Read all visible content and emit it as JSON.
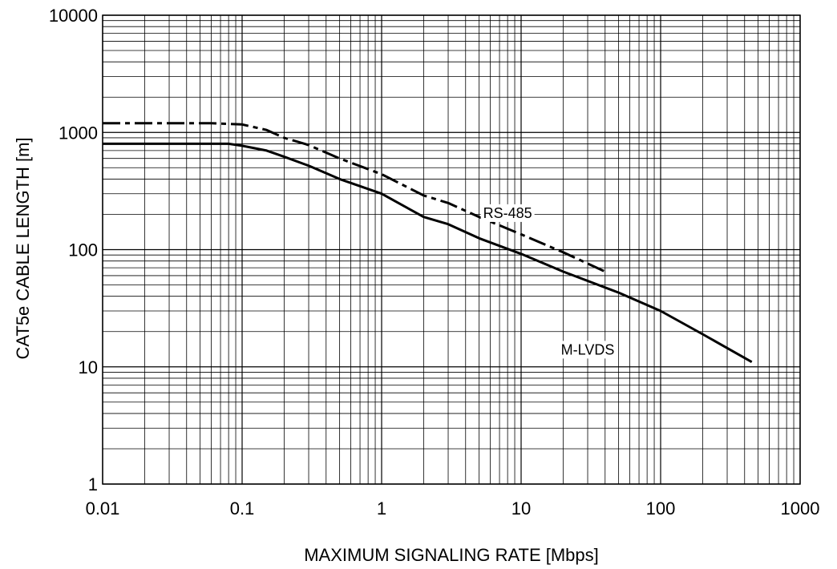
{
  "chart_data": {
    "type": "line",
    "title": "",
    "xlabel": "MAXIMUM SIGNALING RATE [Mbps]",
    "ylabel": "CAT5e CABLE LENGTH [m]",
    "xscale": "log",
    "yscale": "log",
    "xlim": [
      0.01,
      1000
    ],
    "ylim": [
      1,
      10000
    ],
    "grid": true,
    "legend": "none",
    "xticks": [
      0.01,
      0.1,
      1,
      10,
      100,
      1000
    ],
    "xtick_labels": [
      "0.01",
      "0.1",
      "1",
      "10",
      "100",
      "1000"
    ],
    "yticks": [
      1,
      10,
      100,
      1000,
      10000
    ],
    "ytick_labels": [
      "1",
      "10",
      "100",
      "1000",
      "10000"
    ],
    "series": [
      {
        "name": "RS-485",
        "style": "dashed",
        "x": [
          0.01,
          0.06,
          0.1,
          0.15,
          0.2,
          0.3,
          0.5,
          1,
          2,
          3,
          5,
          10,
          20,
          40
        ],
        "y": [
          1200,
          1200,
          1170,
          1050,
          900,
          780,
          600,
          440,
          290,
          250,
          190,
          135,
          95,
          65
        ]
      },
      {
        "name": "M-LVDS",
        "style": "solid",
        "x": [
          0.01,
          0.08,
          0.1,
          0.15,
          0.2,
          0.3,
          0.5,
          1,
          2,
          3,
          5,
          10,
          20,
          50,
          100,
          200,
          450
        ],
        "y": [
          800,
          800,
          770,
          700,
          620,
          520,
          400,
          300,
          190,
          165,
          125,
          92,
          65,
          43,
          30,
          19,
          11
        ]
      }
    ]
  }
}
